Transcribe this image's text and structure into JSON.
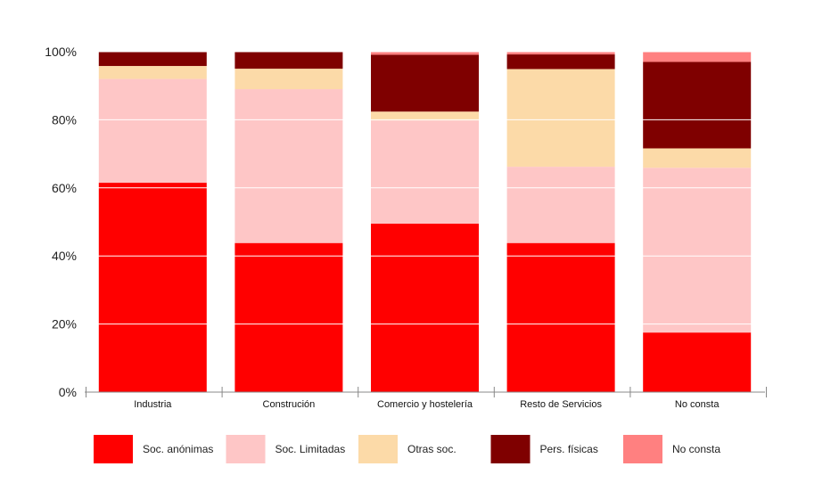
{
  "chart_data": {
    "type": "bar",
    "stacked": true,
    "categories": [
      "Industria",
      "Construción",
      "Comercio y hostelería",
      "Resto de Servicios",
      "No consta"
    ],
    "series": [
      {
        "name": "Soc. anónimas",
        "color": "#ff0000",
        "values": [
          61.5,
          43.8,
          49.5,
          43.8,
          17.5
        ]
      },
      {
        "name": "Soc. Limitadas",
        "color": "#fec6c6",
        "values": [
          30.5,
          45.2,
          30.3,
          22.4,
          48.4
        ]
      },
      {
        "name": "Otras soc.",
        "color": "#fcdaa8",
        "values": [
          3.8,
          6.0,
          2.6,
          28.7,
          5.7
        ]
      },
      {
        "name": "Pers. físicas",
        "color": "#7f0000",
        "values": [
          4.2,
          5.0,
          16.7,
          4.3,
          25.4
        ]
      },
      {
        "name": "No consta",
        "color": "#ff8080",
        "values": [
          0.0,
          0.0,
          0.9,
          0.8,
          3.0
        ]
      }
    ],
    "y_ticks": [
      "0%",
      "20%",
      "40%",
      "60%",
      "80%",
      "100%"
    ],
    "ylim": [
      0,
      100
    ],
    "grid": true,
    "legend_position": "bottom"
  }
}
